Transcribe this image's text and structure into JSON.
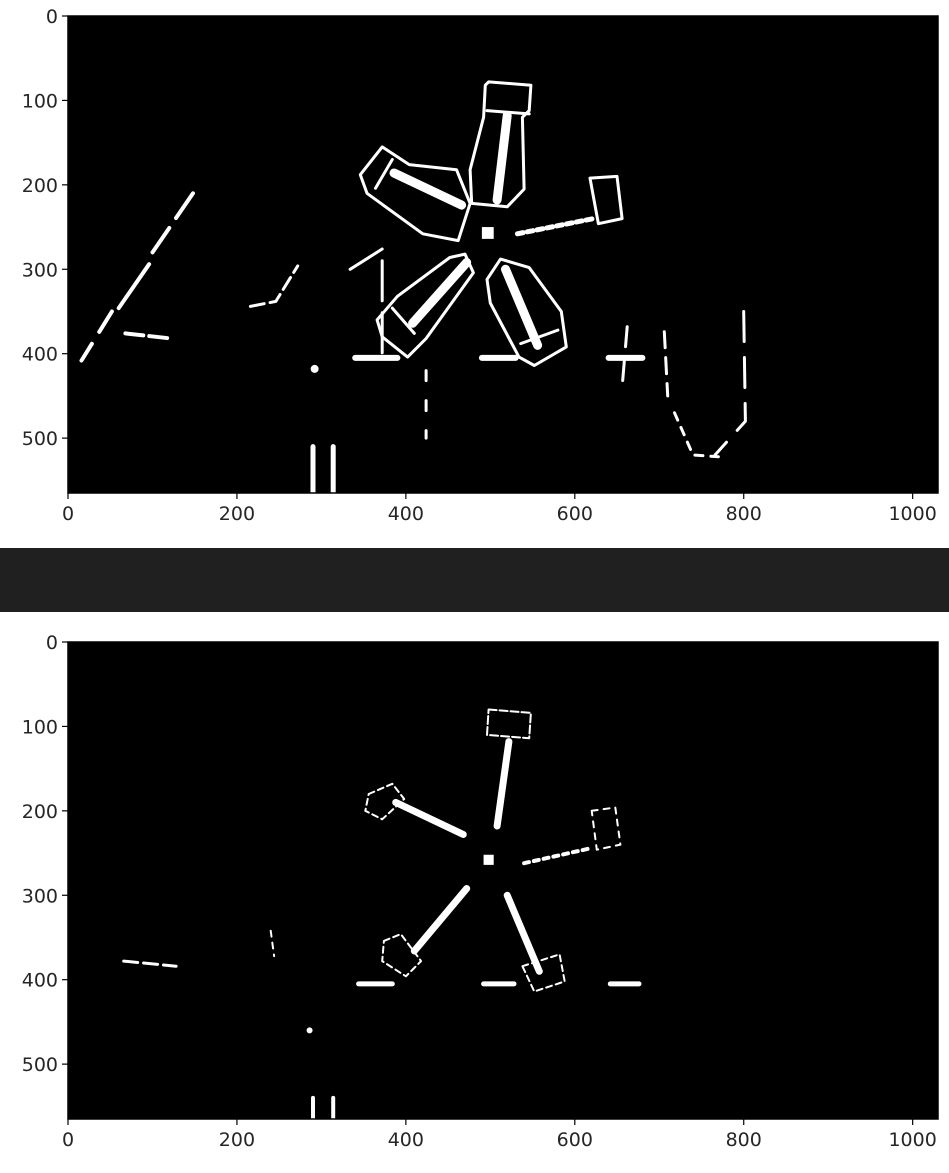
{
  "colors": {
    "figure_bg": "#ffffff",
    "plot_bg": "#000000",
    "edge_color": "#ffffff",
    "separator": "#202020",
    "axis_text": "#262626"
  },
  "chart_data": [
    {
      "type": "image",
      "title": "",
      "xlabel": "",
      "ylabel": "",
      "xlim": [
        0,
        1030
      ],
      "ylim": [
        565,
        0
      ],
      "xticks": [
        0,
        200,
        400,
        600,
        800,
        1000
      ],
      "yticks": [
        0,
        100,
        200,
        300,
        400,
        500
      ],
      "grid": false,
      "content": "binary edge map, white on black"
    },
    {
      "type": "image",
      "title": "",
      "xlabel": "",
      "ylabel": "",
      "xlim": [
        0,
        1030
      ],
      "ylim": [
        565,
        0
      ],
      "xticks": [
        0,
        200,
        400,
        600,
        800,
        1000
      ],
      "yticks": [
        0,
        100,
        200,
        300,
        400,
        500
      ],
      "grid": false,
      "content": "binary edge map, white on black"
    }
  ]
}
